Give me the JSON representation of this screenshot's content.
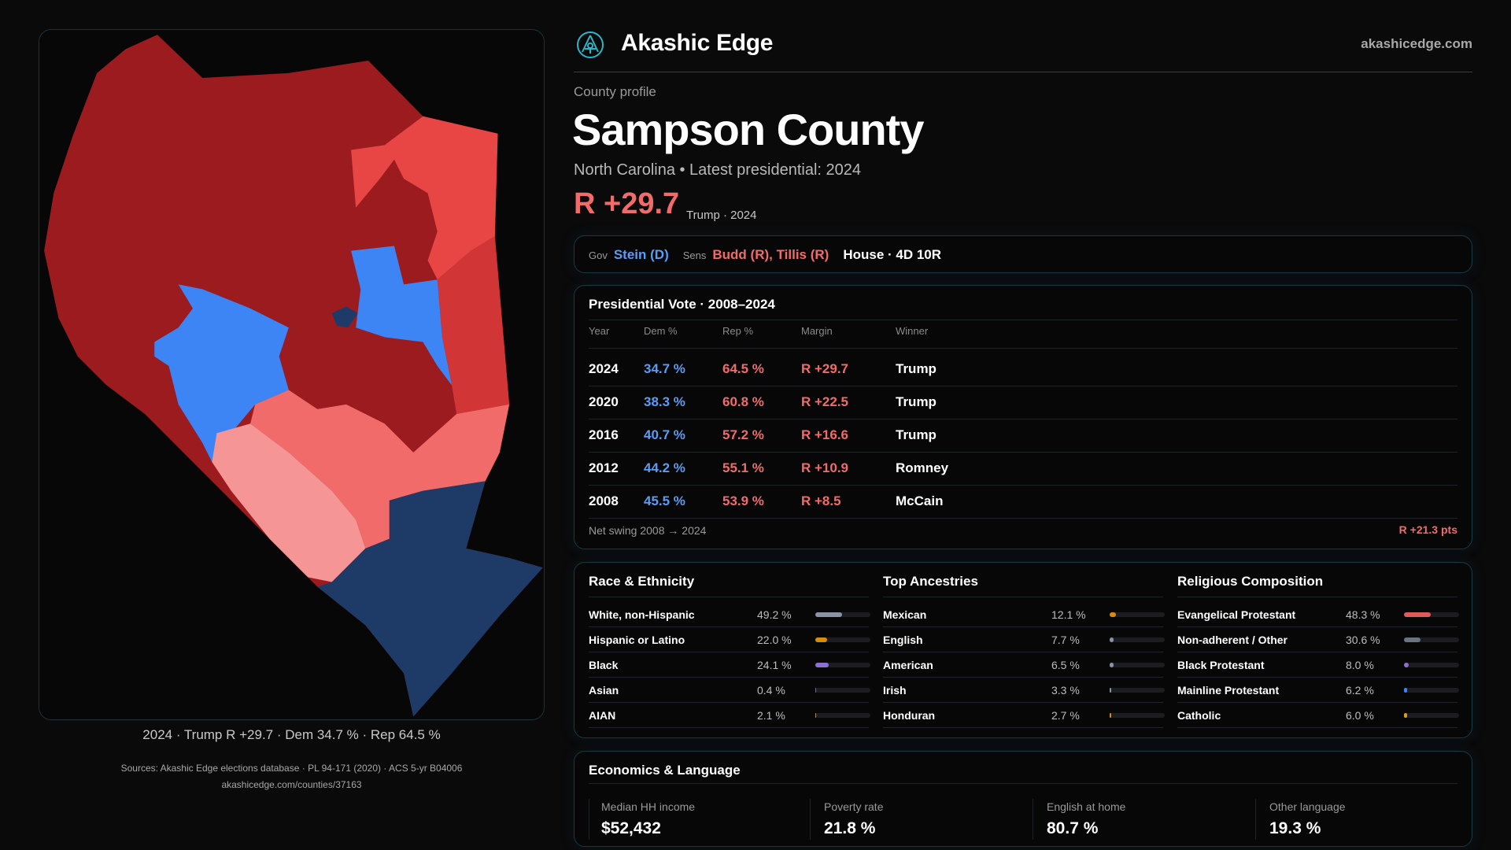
{
  "brand": {
    "name": "Akashic Edge",
    "site": "akashicedge.com"
  },
  "profile": {
    "eyebrow": "County profile",
    "title": "Sampson County",
    "subtitle": "North Carolina • Latest presidential: 2024",
    "margin": "R +29.7",
    "margin_sub": "Trump · 2024"
  },
  "map": {
    "caption": "2024 · Trump R +29.7 · Dem 34.7 % · Rep 64.5 %",
    "colors": {
      "safe_r": "#9b1b1f",
      "likely_r": "#e84545",
      "lean_r": "#d13535",
      "tilt_r": "#f26b6b",
      "toss_r": "#f59595",
      "dem": "#3d85f5",
      "safe_d": "#1e3a66"
    }
  },
  "reps": {
    "gov_label": "Gov",
    "gov": "Stein (D)",
    "sens_label": "Sens",
    "sens": "Budd (R), Tillis (R)",
    "house": "House · 4D 10R"
  },
  "presidential": {
    "title": "Presidential Vote · 2008–2024",
    "headers": [
      "Year",
      "Dem %",
      "Rep %",
      "Margin",
      "Winner"
    ],
    "rows": [
      [
        "2024",
        "34.7 %",
        "64.5 %",
        "R +29.7",
        "Trump"
      ],
      [
        "2020",
        "38.3 %",
        "60.8 %",
        "R +22.5",
        "Trump"
      ],
      [
        "2016",
        "40.7 %",
        "57.2 %",
        "R +16.6",
        "Trump"
      ],
      [
        "2012",
        "44.2 %",
        "55.1 %",
        "R +10.9",
        "Romney"
      ],
      [
        "2008",
        "45.5 %",
        "53.9 %",
        "R +8.5",
        "McCain"
      ]
    ],
    "swing_label": "Net swing 2008 → 2024",
    "swing_value": "R +21.3 pts"
  },
  "demographics": [
    {
      "title": "Race & Ethnicity",
      "items": [
        {
          "label": "White, non-Hispanic",
          "pct": "49.2 %",
          "value": 49.2,
          "color": "#8a93a6"
        },
        {
          "label": "Hispanic or Latino",
          "pct": "22.0 %",
          "value": 22.0,
          "color": "#d98c0a"
        },
        {
          "label": "Black",
          "pct": "24.1 %",
          "value": 24.1,
          "color": "#8b6fd6"
        },
        {
          "label": "Asian",
          "pct": "0.4 %",
          "value": 0.4,
          "color": "#6b7280"
        },
        {
          "label": "AIAN",
          "pct": "2.1 %",
          "value": 2.1,
          "color": "#b08a5a"
        }
      ]
    },
    {
      "title": "Top Ancestries",
      "items": [
        {
          "label": "Mexican",
          "pct": "12.1 %",
          "value": 12.1,
          "color": "#d98c0a"
        },
        {
          "label": "English",
          "pct": "7.7 %",
          "value": 7.7,
          "color": "#8a93a6"
        },
        {
          "label": "American",
          "pct": "6.5 %",
          "value": 6.5,
          "color": "#8a93a6"
        },
        {
          "label": "Irish",
          "pct": "3.3 %",
          "value": 3.3,
          "color": "#8a93a6"
        },
        {
          "label": "Honduran",
          "pct": "2.7 %",
          "value": 2.7,
          "color": "#d98c0a"
        }
      ]
    },
    {
      "title": "Religious Composition",
      "items": [
        {
          "label": "Evangelical Protestant",
          "pct": "48.3 %",
          "value": 48.3,
          "color": "#e05a5a"
        },
        {
          "label": "Non-adherent / Other",
          "pct": "30.6 %",
          "value": 30.6,
          "color": "#6b7280"
        },
        {
          "label": "Black Protestant",
          "pct": "8.0 %",
          "value": 8.0,
          "color": "#8b6fd6"
        },
        {
          "label": "Mainline Protestant",
          "pct": "6.2 %",
          "value": 6.2,
          "color": "#3b82f6"
        },
        {
          "label": "Catholic",
          "pct": "6.0 %",
          "value": 6.0,
          "color": "#d4a017"
        }
      ]
    }
  ],
  "economics": {
    "title": "Economics & Language",
    "items": [
      {
        "label": "Median HH income",
        "value": "$52,432"
      },
      {
        "label": "Poverty rate",
        "value": "21.8 %"
      },
      {
        "label": "English at home",
        "value": "80.7 %"
      },
      {
        "label": "Other language",
        "value": "19.3 %"
      }
    ]
  },
  "sources": {
    "line1": "Sources: Akashic Edge elections database · PL 94-171 (2020) · ACS 5-yr B04006",
    "line2": "akashicedge.com/counties/37163"
  }
}
